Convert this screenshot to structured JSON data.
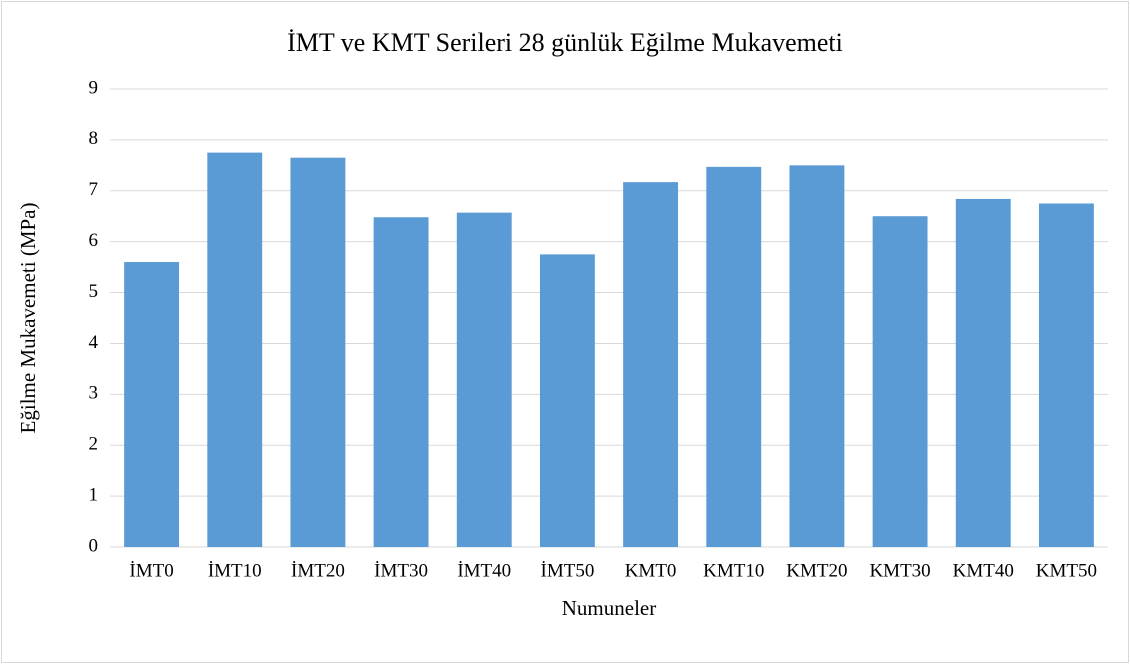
{
  "chart_data": {
    "type": "bar",
    "title": "İMT ve KMT Serileri 28 günlük Eğilme Mukavemeti",
    "x_label": "Numuneler",
    "y_label": "Eğilme Mukavemeti (MPa)",
    "categories": [
      "İMT0",
      "İMT10",
      "İMT20",
      "İMT30",
      "İMT40",
      "İMT50",
      "KMT0",
      "KMT10",
      "KMT20",
      "KMT30",
      "KMT40",
      "KMT50"
    ],
    "values": [
      5.6,
      7.75,
      7.65,
      6.48,
      6.57,
      5.75,
      7.17,
      7.47,
      7.5,
      6.5,
      6.84,
      6.75
    ],
    "color": "#5b9bd5",
    "ylim": [
      0,
      9
    ],
    "yticks": [
      0,
      1,
      2,
      3,
      4,
      5,
      6,
      7,
      8,
      9
    ],
    "grid": true
  }
}
